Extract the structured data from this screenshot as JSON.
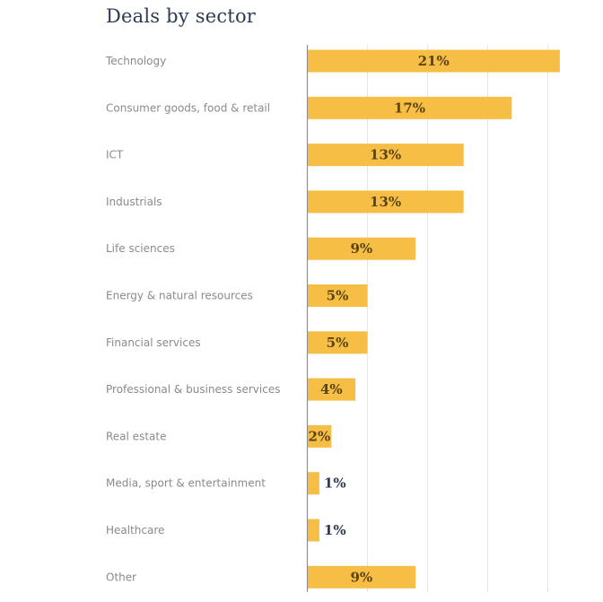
{
  "chart_data": {
    "type": "bar",
    "orientation": "horizontal",
    "title": "Deals by sector",
    "xlabel": "",
    "ylabel": "",
    "unit": "%",
    "xlim": [
      0,
      21
    ],
    "grid": true,
    "gridline_step": 5,
    "legend": "none",
    "bar_color": "#F6BE45",
    "categories": [
      "Technology",
      "Consumer goods, food & retail",
      "ICT",
      "Industrials",
      "Life sciences",
      "Energy & natural resources",
      "Financial services",
      "Professional & business services",
      "Real estate",
      "Media, sport & entertainment",
      "Healthcare",
      "Other"
    ],
    "values": [
      21,
      17,
      13,
      13,
      9,
      5,
      5,
      4,
      2,
      1,
      1,
      9
    ],
    "labels": [
      "21%",
      "17%",
      "13%",
      "13%",
      "9%",
      "5%",
      "5%",
      "4%",
      "2%",
      "1%",
      "1%",
      "9%"
    ]
  }
}
